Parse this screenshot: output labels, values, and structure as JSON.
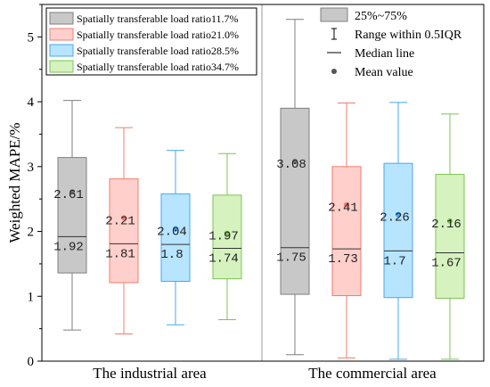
{
  "chart_data": {
    "type": "box",
    "ylabel": "Weighted MAPE/%",
    "ylim": [
      0,
      5.5
    ],
    "yticks": [
      0,
      1,
      2,
      3,
      4,
      5
    ],
    "groups": [
      "The industrial area",
      "The commercial area"
    ],
    "series": [
      {
        "name": "Spatially transferable load ratio11.7%",
        "color": "#7f7f7f",
        "fill": "#c8c8c8"
      },
      {
        "name": "Spatially transferable load ratio21.0%",
        "color": "#f07c70",
        "fill": "#ffd0cb"
      },
      {
        "name": "Spatially transferable load ratio28.5%",
        "color": "#47a8f2",
        "fill": "#b7e5ff"
      },
      {
        "name": "Spatially transferable load ratio34.7%",
        "color": "#7cc454",
        "fill": "#d5f2bf"
      }
    ],
    "boxes": [
      {
        "group": 0,
        "series": 0,
        "whisker_low": 0.48,
        "q1": 1.36,
        "median": 1.92,
        "q3": 3.14,
        "whisker_high": 4.02,
        "mean": 2.61,
        "median_label": "1.92",
        "mean_label": "2.61"
      },
      {
        "group": 0,
        "series": 1,
        "whisker_low": 0.42,
        "q1": 1.21,
        "median": 1.81,
        "q3": 2.81,
        "whisker_high": 3.6,
        "mean": 2.21,
        "median_label": "1.81",
        "mean_label": "2.21"
      },
      {
        "group": 0,
        "series": 2,
        "whisker_low": 0.56,
        "q1": 1.23,
        "median": 1.8,
        "q3": 2.58,
        "whisker_high": 3.25,
        "mean": 2.04,
        "median_label": "1.8",
        "mean_label": "2.04"
      },
      {
        "group": 0,
        "series": 3,
        "whisker_low": 0.64,
        "q1": 1.27,
        "median": 1.74,
        "q3": 2.56,
        "whisker_high": 3.2,
        "mean": 1.97,
        "median_label": "1.74",
        "mean_label": "1.97"
      },
      {
        "group": 1,
        "series": 0,
        "whisker_low": 0.1,
        "q1": 1.03,
        "median": 1.75,
        "q3": 3.9,
        "whisker_high": 5.27,
        "mean": 3.08,
        "median_label": "1.75",
        "mean_label": "3.08"
      },
      {
        "group": 1,
        "series": 1,
        "whisker_low": 0.05,
        "q1": 1.01,
        "median": 1.73,
        "q3": 3.0,
        "whisker_high": 3.98,
        "mean": 2.41,
        "median_label": "1.73",
        "mean_label": "2.41"
      },
      {
        "group": 1,
        "series": 2,
        "whisker_low": 0.03,
        "q1": 0.98,
        "median": 1.7,
        "q3": 3.05,
        "whisker_high": 3.99,
        "mean": 2.26,
        "median_label": "1.7",
        "mean_label": "2.26"
      },
      {
        "group": 1,
        "series": 3,
        "whisker_low": 0.03,
        "q1": 0.97,
        "median": 1.67,
        "q3": 2.88,
        "whisker_high": 3.81,
        "mean": 2.16,
        "median_label": "1.67",
        "mean_label": "2.16"
      }
    ],
    "legend_right": [
      {
        "symbol": "box",
        "label": "25%~75%"
      },
      {
        "symbol": "whisker",
        "label": "Range within 0.5IQR"
      },
      {
        "symbol": "line",
        "label": "Median line"
      },
      {
        "symbol": "dot",
        "label": "Mean value"
      }
    ],
    "colors": {
      "axis": "#000000",
      "divider": "#9a9a9a",
      "median": "#333333"
    }
  }
}
